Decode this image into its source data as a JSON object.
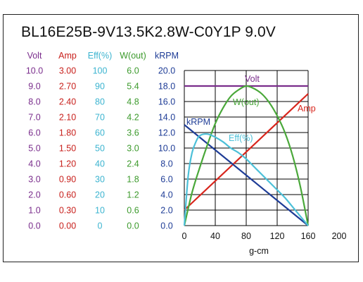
{
  "chart_data": {
    "type": "line",
    "title": "BL16E25B-9V13.5K2.8W-C0Y1P   9.0V",
    "xlabel": "g-cm",
    "xlim": [
      0,
      200
    ],
    "x_ticks": [
      "0",
      "40",
      "80",
      "120",
      "160",
      "200"
    ],
    "grid": true,
    "axes": [
      {
        "label": "Volt",
        "color": "#7a2d8c",
        "ticks": [
          "0.0",
          "1.0",
          "2.0",
          "3.0",
          "4.0",
          "5.0",
          "6.0",
          "7.0",
          "8.0",
          "9.0",
          "10.0"
        ],
        "range": [
          0,
          10
        ]
      },
      {
        "label": "Amp",
        "color": "#c8201c",
        "ticks": [
          "0.00",
          "0.30",
          "0.60",
          "0.90",
          "1.20",
          "1.50",
          "1.80",
          "2.10",
          "2.40",
          "2.70",
          "3.00"
        ],
        "range": [
          0,
          3
        ]
      },
      {
        "label": "Eff(%)",
        "color": "#3cb4d0",
        "ticks": [
          "0",
          "10",
          "20",
          "30",
          "40",
          "50",
          "60",
          "70",
          "80",
          "90",
          "100"
        ],
        "range": [
          0,
          100
        ]
      },
      {
        "label": "W(out)",
        "color": "#3c9a2c",
        "ticks": [
          "0.0",
          "0.6",
          "1.2",
          "1.8",
          "2.4",
          "3.0",
          "3.6",
          "4.2",
          "4.8",
          "5.4",
          "6.0"
        ],
        "range": [
          0,
          6
        ]
      },
      {
        "label": "kRPM",
        "color": "#1e3c96",
        "ticks": [
          "0.0",
          "2.0",
          "4.0",
          "6.0",
          "8.0",
          "10.0",
          "12.0",
          "14.0",
          "16.0",
          "18.0",
          "20.0"
        ],
        "range": [
          0,
          20
        ]
      }
    ],
    "series": [
      {
        "name": "Volt",
        "color": "#7a2d8c",
        "axis": 0,
        "x": [
          0,
          160
        ],
        "y": [
          9.0,
          9.0
        ]
      },
      {
        "name": "Amp",
        "color": "#d8251c",
        "axis": 1,
        "x": [
          0,
          160
        ],
        "y": [
          0.3,
          2.55
        ]
      },
      {
        "name": "kRPM",
        "color": "#1e3c96",
        "axis": 4,
        "x": [
          0,
          160
        ],
        "y": [
          13.0,
          0.0
        ]
      },
      {
        "name": "W(out)",
        "color": "#4aa83a",
        "axis": 3,
        "x": [
          0,
          10,
          20,
          30,
          40,
          50,
          60,
          70,
          80,
          90,
          100,
          110,
          120,
          130,
          140,
          150,
          160
        ],
        "y": [
          0.0,
          1.28,
          2.25,
          3.14,
          3.95,
          4.55,
          5.0,
          5.25,
          5.4,
          5.3,
          5.1,
          4.75,
          4.25,
          3.6,
          2.7,
          1.5,
          0.0
        ]
      },
      {
        "name": "Eff(%)",
        "color": "#4cc0d8",
        "axis": 2,
        "x": [
          0,
          5,
          10,
          15,
          20,
          30,
          40,
          50,
          60,
          70,
          80,
          90,
          100,
          110,
          120,
          130,
          140,
          150,
          160
        ],
        "y": [
          0,
          32,
          47,
          54,
          58,
          59,
          57,
          54,
          50,
          47,
          43,
          38,
          33,
          28,
          23,
          18,
          12,
          6,
          0
        ]
      }
    ]
  }
}
